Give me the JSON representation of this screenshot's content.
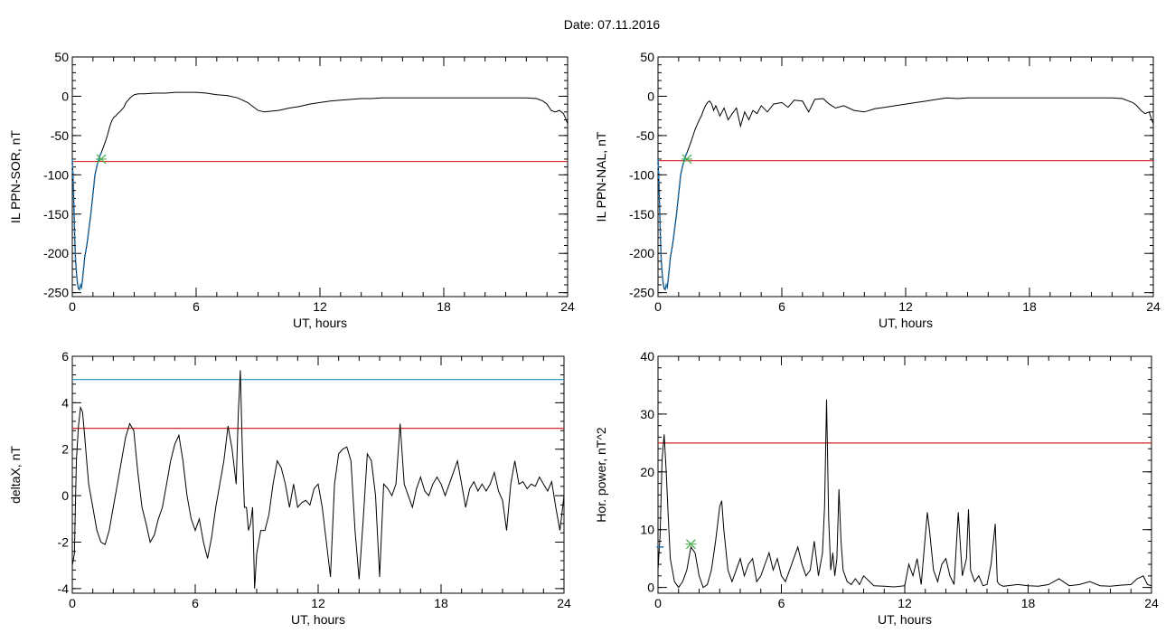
{
  "header": {
    "date_label": "Date:  07.11.2016"
  },
  "chart_data": [
    {
      "type": "line",
      "id": "p1",
      "title": "",
      "xlabel": "UT, hours",
      "ylabel": "IL PPN-SOR, nT",
      "xlim": [
        0,
        24
      ],
      "ylim": [
        -255,
        50
      ],
      "xticks": [
        0,
        6,
        12,
        18,
        24
      ],
      "yticks": [
        50,
        0,
        -50,
        -100,
        -150,
        -200,
        -250
      ],
      "hlines": [
        {
          "y": -83,
          "color": "#d62728"
        }
      ],
      "markers": [
        {
          "x": 1.4,
          "y": -80,
          "symbol": "x",
          "color": "#4caf50"
        }
      ],
      "series": [
        {
          "color": "#000000",
          "x": [
            0,
            0.05,
            0.1,
            0.15,
            0.2,
            0.25,
            0.3,
            0.35,
            0.4,
            0.45,
            0.5,
            0.55,
            0.6,
            0.7,
            0.8,
            0.9,
            1.0,
            1.1,
            1.2,
            1.3,
            1.4,
            1.5,
            1.6,
            1.7,
            1.8,
            1.9,
            2.0,
            2.1,
            2.2,
            2.3,
            2.4,
            2.5,
            2.6,
            2.7,
            2.8,
            2.9,
            3.0,
            3.2,
            3.5,
            4.0,
            4.5,
            5.0,
            5.5,
            6.0,
            6.5,
            7.0,
            7.5,
            8.0,
            8.5,
            8.8,
            9.0,
            9.3,
            9.6,
            10.0,
            10.5,
            11.0,
            11.5,
            12.0,
            12.5,
            13.0,
            13.5,
            14.0,
            14.5,
            15.0,
            15.5,
            16.0,
            16.5,
            17.0,
            17.5,
            18.0,
            18.5,
            19.0,
            19.5,
            20.0,
            20.5,
            21.0,
            21.5,
            22.0,
            22.5,
            22.8,
            23.0,
            23.2,
            23.4,
            23.6,
            23.8,
            23.9,
            24.0
          ],
          "y": [
            -80,
            -110,
            -165,
            -205,
            -225,
            -238,
            -245,
            -246,
            -240,
            -243,
            -232,
            -218,
            -205,
            -190,
            -170,
            -150,
            -125,
            -100,
            -88,
            -78,
            -72,
            -65,
            -58,
            -50,
            -40,
            -32,
            -27,
            -25,
            -22,
            -20,
            -17,
            -14,
            -8,
            -5,
            -2,
            0,
            2,
            3,
            3,
            4,
            4,
            5,
            5,
            5,
            4,
            2,
            1,
            -2,
            -8,
            -14,
            -18,
            -20,
            -19,
            -18,
            -15,
            -13,
            -10,
            -8,
            -6,
            -5,
            -4,
            -3,
            -3,
            -2,
            -2,
            -2,
            -2,
            -2,
            -2,
            -2,
            -2,
            -2,
            -2,
            -2,
            -2,
            -2,
            -2,
            -2,
            -3,
            -6,
            -10,
            -18,
            -20,
            -18,
            -22,
            -28,
            -35
          ]
        },
        {
          "color": "#1f77b4",
          "dashed": true,
          "x": [
            0,
            0.05,
            0.1,
            0.15,
            0.2,
            0.25,
            0.3,
            0.35,
            0.4,
            0.45,
            0.5,
            0.55,
            0.6,
            0.7,
            0.8,
            0.9,
            1.0,
            1.1,
            1.2,
            1.3,
            1.4
          ],
          "y": [
            -80,
            -110,
            -165,
            -205,
            -225,
            -238,
            -245,
            -246,
            -240,
            -243,
            -232,
            -218,
            -205,
            -190,
            -170,
            -150,
            -125,
            -100,
            -88,
            -78,
            -72
          ]
        }
      ]
    },
    {
      "type": "line",
      "id": "p2",
      "title": "",
      "xlabel": "UT, hours",
      "ylabel": "IL PPN-NAL, nT",
      "xlim": [
        0,
        24
      ],
      "ylim": [
        -255,
        50
      ],
      "xticks": [
        0,
        6,
        12,
        18,
        24
      ],
      "yticks": [
        50,
        0,
        -50,
        -100,
        -150,
        -200,
        -250
      ],
      "hlines": [
        {
          "y": -82,
          "color": "#d62728"
        }
      ],
      "markers": [
        {
          "x": 1.4,
          "y": -80,
          "symbol": "x",
          "color": "#4caf50"
        }
      ],
      "series": [
        {
          "color": "#000000",
          "x": [
            0,
            0.05,
            0.1,
            0.15,
            0.2,
            0.25,
            0.3,
            0.35,
            0.4,
            0.45,
            0.5,
            0.55,
            0.6,
            0.7,
            0.8,
            0.9,
            1.0,
            1.1,
            1.2,
            1.3,
            1.4,
            1.5,
            1.6,
            1.7,
            1.8,
            1.9,
            2.0,
            2.1,
            2.2,
            2.3,
            2.4,
            2.5,
            2.6,
            2.7,
            2.8,
            3.0,
            3.2,
            3.4,
            3.6,
            3.8,
            4.0,
            4.2,
            4.4,
            4.6,
            4.8,
            5.0,
            5.3,
            5.6,
            6.0,
            6.3,
            6.6,
            7.0,
            7.3,
            7.6,
            8.0,
            8.3,
            8.6,
            9.0,
            9.5,
            10.0,
            10.5,
            11.0,
            11.5,
            12.0,
            12.5,
            13.0,
            13.5,
            14.0,
            14.5,
            15.0,
            15.5,
            16.0,
            16.5,
            17.0,
            17.5,
            18.0,
            18.5,
            19.0,
            19.5,
            20.0,
            20.5,
            21.0,
            21.5,
            22.0,
            22.5,
            22.8,
            23.0,
            23.2,
            23.4,
            23.6,
            23.8,
            23.9,
            24.0
          ],
          "y": [
            -80,
            -110,
            -165,
            -205,
            -225,
            -238,
            -245,
            -246,
            -240,
            -243,
            -232,
            -218,
            -205,
            -190,
            -170,
            -150,
            -125,
            -100,
            -88,
            -78,
            -72,
            -65,
            -58,
            -50,
            -42,
            -36,
            -30,
            -25,
            -18,
            -12,
            -8,
            -6,
            -10,
            -18,
            -12,
            -25,
            -15,
            -30,
            -22,
            -15,
            -38,
            -20,
            -30,
            -18,
            -22,
            -12,
            -20,
            -10,
            -8,
            -14,
            -5,
            -6,
            -20,
            -4,
            -3,
            -10,
            -15,
            -12,
            -18,
            -20,
            -16,
            -14,
            -12,
            -10,
            -8,
            -6,
            -4,
            -2,
            -3,
            -2,
            -2,
            -2,
            -2,
            -2,
            -2,
            -2,
            -2,
            -2,
            -2,
            -2,
            -2,
            -2,
            -2,
            -2,
            -3,
            -6,
            -8,
            -12,
            -18,
            -22,
            -20,
            -28,
            -35
          ]
        },
        {
          "color": "#1f77b4",
          "dashed": true,
          "x": [
            0,
            0.05,
            0.1,
            0.15,
            0.2,
            0.25,
            0.3,
            0.35,
            0.4,
            0.45,
            0.5,
            0.55,
            0.6,
            0.7,
            0.8,
            0.9,
            1.0,
            1.1,
            1.2,
            1.3,
            1.4
          ],
          "y": [
            -80,
            -110,
            -165,
            -205,
            -225,
            -238,
            -245,
            -246,
            -240,
            -243,
            -232,
            -218,
            -205,
            -190,
            -170,
            -150,
            -125,
            -100,
            -88,
            -78,
            -72
          ]
        }
      ]
    },
    {
      "type": "line",
      "id": "p3",
      "title": "",
      "xlabel": "UT, hours",
      "ylabel": "deltaX, nT",
      "xlim": [
        0,
        24
      ],
      "ylim": [
        -4.2,
        6
      ],
      "xticks": [
        0,
        6,
        12,
        18,
        24
      ],
      "yticks": [
        6,
        4,
        2,
        0,
        -2,
        -4
      ],
      "hlines": [
        {
          "y": 5.0,
          "color": "#1f8fbf"
        },
        {
          "y": 2.9,
          "color": "#d62728"
        }
      ],
      "markers": [],
      "series": [
        {
          "color": "#000000",
          "x": [
            0,
            0.1,
            0.2,
            0.3,
            0.4,
            0.5,
            0.6,
            0.7,
            0.8,
            1.0,
            1.2,
            1.4,
            1.6,
            1.8,
            2.0,
            2.2,
            2.4,
            2.6,
            2.8,
            3.0,
            3.2,
            3.4,
            3.6,
            3.8,
            4.0,
            4.2,
            4.4,
            4.6,
            4.8,
            5.0,
            5.2,
            5.4,
            5.6,
            5.8,
            6.0,
            6.2,
            6.4,
            6.6,
            6.8,
            7.0,
            7.2,
            7.4,
            7.6,
            7.8,
            8.0,
            8.1,
            8.2,
            8.3,
            8.4,
            8.5,
            8.6,
            8.7,
            8.8,
            8.9,
            9.0,
            9.2,
            9.4,
            9.6,
            9.8,
            10.0,
            10.2,
            10.4,
            10.6,
            10.8,
            11.0,
            11.2,
            11.4,
            11.6,
            11.8,
            12.0,
            12.2,
            12.4,
            12.6,
            12.8,
            13.0,
            13.2,
            13.4,
            13.6,
            13.8,
            14.0,
            14.2,
            14.4,
            14.6,
            14.8,
            15.0,
            15.2,
            15.4,
            15.6,
            15.8,
            16.0,
            16.2,
            16.4,
            16.6,
            16.8,
            17.0,
            17.2,
            17.4,
            17.6,
            17.8,
            18.0,
            18.2,
            18.4,
            18.6,
            18.8,
            19.0,
            19.2,
            19.4,
            19.6,
            19.8,
            20.0,
            20.2,
            20.4,
            20.6,
            20.8,
            21.0,
            21.2,
            21.4,
            21.6,
            21.8,
            22.0,
            22.2,
            22.4,
            22.6,
            22.8,
            23.0,
            23.2,
            23.4,
            23.6,
            23.8,
            24.0
          ],
          "y": [
            -3,
            -2.5,
            1.5,
            3.0,
            3.8,
            3.6,
            2.6,
            1.5,
            0.5,
            -0.5,
            -1.5,
            -2.0,
            -2.1,
            -1.5,
            -0.5,
            0.5,
            1.5,
            2.5,
            3.1,
            2.8,
            1.0,
            -0.5,
            -1.2,
            -2.0,
            -1.7,
            -1.0,
            -0.5,
            0.5,
            1.5,
            2.2,
            2.6,
            1.5,
            0.0,
            -1.0,
            -1.5,
            -1.0,
            -2.0,
            -2.7,
            -1.8,
            -0.5,
            0.5,
            1.5,
            3.0,
            2.0,
            0.5,
            3.5,
            5.4,
            2.0,
            -0.5,
            -0.5,
            -1.5,
            -1.2,
            -0.5,
            -4.0,
            -2.5,
            -1.5,
            -1.5,
            -0.8,
            0.5,
            1.5,
            1.2,
            0.5,
            -0.5,
            0.5,
            -0.5,
            -0.3,
            -0.2,
            -0.4,
            0.3,
            0.5,
            -0.5,
            -2.0,
            -3.5,
            0.5,
            1.8,
            2.0,
            2.1,
            1.5,
            -1.5,
            -3.6,
            -1.0,
            1.8,
            1.5,
            0.0,
            -3.5,
            0.5,
            0.3,
            0.0,
            0.5,
            3.1,
            0.5,
            0.0,
            -0.5,
            0.3,
            0.8,
            0.2,
            0.0,
            0.5,
            0.8,
            0.5,
            0.0,
            0.5,
            1.0,
            1.5,
            0.5,
            -0.5,
            0.3,
            0.6,
            0.2,
            0.5,
            0.2,
            0.5,
            1.0,
            0.2,
            -0.2,
            -1.5,
            0.5,
            1.5,
            0.5,
            0.6,
            0.3,
            0.5,
            0.4,
            0.8,
            0.5,
            0.2,
            0.6,
            -0.5,
            -1.5,
            0.0
          ]
        }
      ]
    },
    {
      "type": "line",
      "id": "p4",
      "title": "",
      "xlabel": "UT, hours",
      "ylabel": "Hor. power, nT^2",
      "xlim": [
        0,
        24
      ],
      "ylim": [
        -1,
        40
      ],
      "xticks": [
        0,
        6,
        12,
        18,
        24
      ],
      "yticks": [
        40,
        30,
        20,
        10,
        0
      ],
      "hlines": [
        {
          "y": 25.0,
          "color": "#d62728"
        }
      ],
      "markers": [
        {
          "x": 1.6,
          "y": 7.5,
          "symbol": "x",
          "color": "#4caf50"
        },
        {
          "x": 0.1,
          "y": 7.0,
          "symbol": "tick",
          "color": "#1f77b4"
        }
      ],
      "series": [
        {
          "color": "#000000",
          "x": [
            0,
            0.1,
            0.2,
            0.3,
            0.4,
            0.5,
            0.6,
            0.8,
            1.0,
            1.2,
            1.4,
            1.6,
            1.8,
            2.0,
            2.2,
            2.4,
            2.6,
            2.8,
            3.0,
            3.1,
            3.2,
            3.4,
            3.6,
            3.8,
            4.0,
            4.2,
            4.4,
            4.6,
            4.8,
            5.0,
            5.2,
            5.4,
            5.6,
            5.8,
            6.0,
            6.2,
            6.4,
            6.6,
            6.8,
            7.0,
            7.2,
            7.4,
            7.6,
            7.8,
            8.0,
            8.1,
            8.2,
            8.3,
            8.4,
            8.5,
            8.6,
            8.7,
            8.8,
            8.9,
            9.0,
            9.1,
            9.2,
            9.4,
            9.6,
            9.8,
            10.0,
            10.5,
            11.0,
            11.5,
            12.0,
            12.2,
            12.4,
            12.6,
            12.8,
            13.0,
            13.1,
            13.2,
            13.4,
            13.6,
            13.8,
            14.0,
            14.2,
            14.4,
            14.6,
            14.8,
            15.0,
            15.1,
            15.2,
            15.4,
            15.6,
            15.8,
            16.0,
            16.2,
            16.4,
            16.5,
            16.6,
            16.8,
            17.0,
            17.5,
            18.0,
            18.5,
            19.0,
            19.5,
            20.0,
            20.5,
            21.0,
            21.5,
            22.0,
            22.5,
            23.0,
            23.3,
            23.6,
            23.8,
            24.0
          ],
          "y": [
            3,
            9,
            22,
            26.5,
            20,
            12,
            5,
            1,
            0,
            1,
            3,
            7,
            6,
            2,
            0,
            0.5,
            3,
            8,
            14,
            15,
            10,
            3,
            1,
            3,
            5,
            2,
            4,
            5,
            1,
            2,
            4,
            6,
            3,
            5,
            2,
            1,
            3,
            5,
            7,
            4,
            2,
            3,
            8,
            2,
            6,
            14,
            32.5,
            12,
            3,
            6,
            2,
            5,
            17,
            8,
            3,
            2,
            1,
            0.5,
            1.5,
            0.5,
            2,
            0.3,
            0.2,
            0.1,
            0.3,
            4,
            2,
            5,
            0.5,
            9,
            13,
            10,
            3,
            1,
            4,
            5,
            2,
            0.5,
            13,
            2,
            5,
            13.5,
            3,
            1,
            2,
            0.3,
            0.5,
            4,
            11,
            1,
            0.5,
            0.2,
            0.3,
            0.5,
            0.3,
            0.2,
            0.5,
            1.5,
            0.3,
            0.5,
            1.0,
            0.3,
            0.2,
            0.4,
            0.5,
            1.5,
            2,
            0.5,
            0.3
          ]
        }
      ]
    }
  ]
}
